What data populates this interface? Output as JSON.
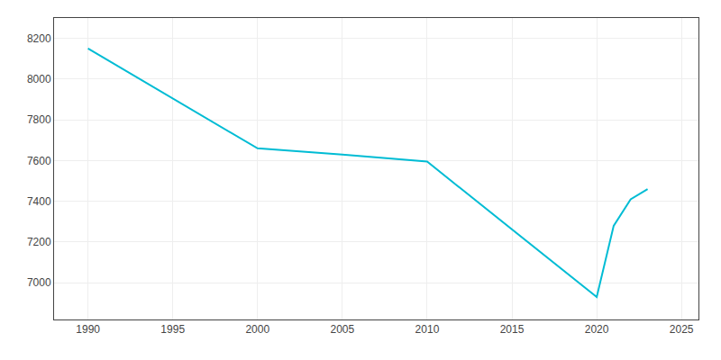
{
  "chart_data": {
    "type": "line",
    "x": [
      1990,
      2000,
      2005,
      2010,
      2020,
      2021,
      2022,
      2023
    ],
    "values": [
      8150,
      7660,
      7630,
      7595,
      6930,
      7280,
      7410,
      7460
    ],
    "color": "#00BCD4",
    "xlim": [
      1988,
      2026
    ],
    "ylim": [
      6820,
      8300
    ],
    "xticks": [
      1990,
      1995,
      2000,
      2005,
      2010,
      2015,
      2020,
      2025
    ],
    "yticks": [
      7000,
      7200,
      7400,
      7600,
      7800,
      8000,
      8200
    ],
    "grid": true
  }
}
